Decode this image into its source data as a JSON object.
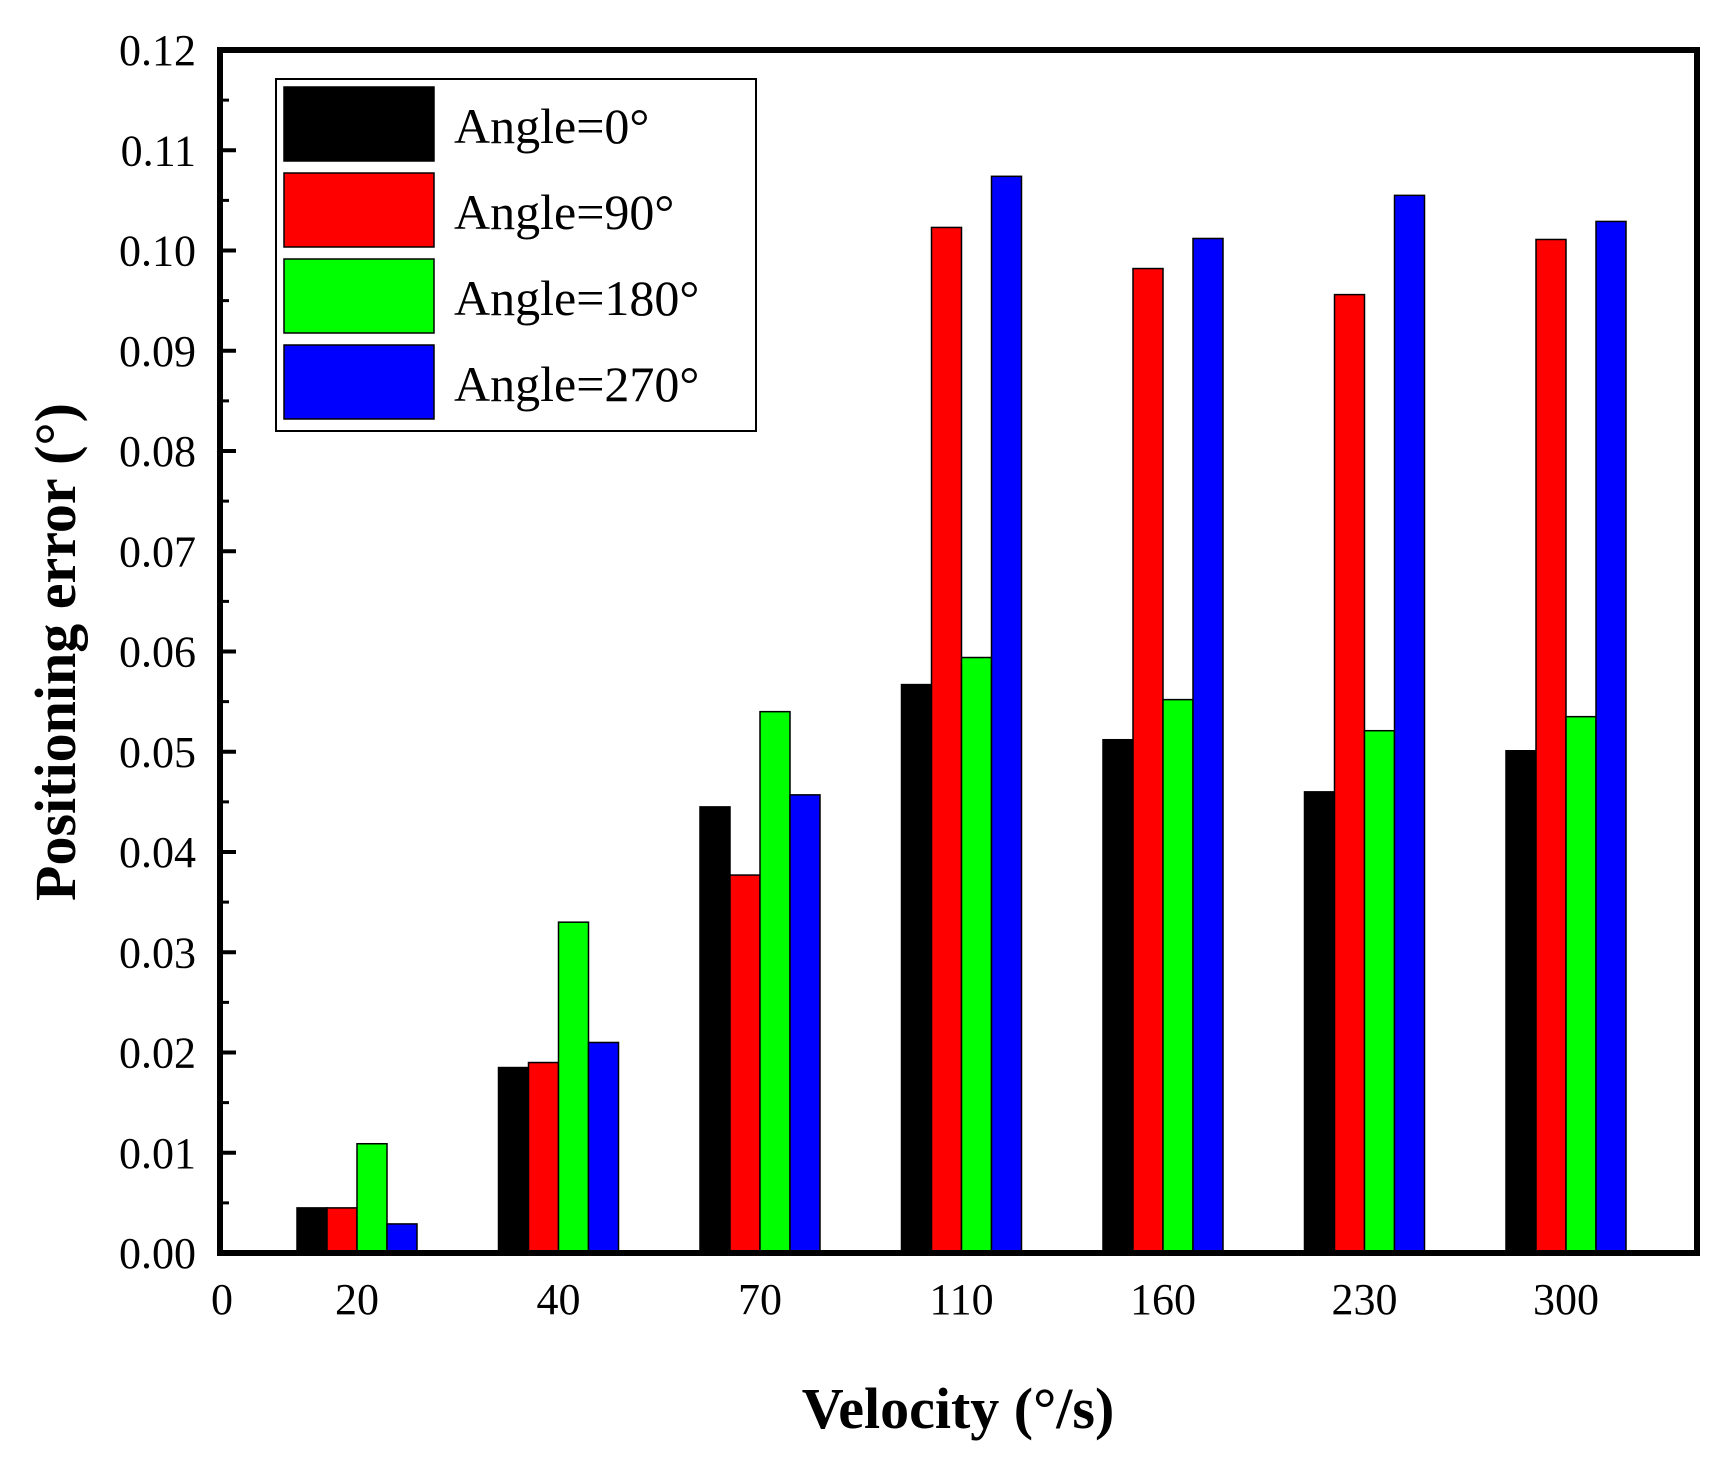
{
  "chart_data": {
    "type": "bar",
    "title": "",
    "xlabel": "Velocity (°/s)",
    "ylabel": "Positioning error (°)",
    "x_origin_label": "0",
    "categories": [
      "20",
      "40",
      "70",
      "110",
      "160",
      "230",
      "300"
    ],
    "ylim": [
      0,
      0.12
    ],
    "y_ticks": [
      "0.00",
      "0.01",
      "0.02",
      "0.03",
      "0.04",
      "0.05",
      "0.06",
      "0.07",
      "0.08",
      "0.09",
      "0.10",
      "0.11",
      "0.12"
    ],
    "grid": false,
    "legend_position": "top-left",
    "series": [
      {
        "name": "Angle=0°",
        "color": "#000000",
        "values": [
          0.0045,
          0.0185,
          0.0445,
          0.0567,
          0.0512,
          0.046,
          0.0501
        ]
      },
      {
        "name": "Angle=90°",
        "color": "#ff0000",
        "values": [
          0.0045,
          0.019,
          0.0377,
          0.1023,
          0.0982,
          0.0956,
          0.1011
        ]
      },
      {
        "name": "Angle=180°",
        "color": "#00ff00",
        "values": [
          0.0109,
          0.033,
          0.054,
          0.0594,
          0.0552,
          0.0521,
          0.0535
        ]
      },
      {
        "name": "Angle=270°",
        "color": "#0000ff",
        "values": [
          0.0029,
          0.021,
          0.0457,
          0.1074,
          0.1012,
          0.1055,
          0.1029
        ]
      }
    ]
  }
}
